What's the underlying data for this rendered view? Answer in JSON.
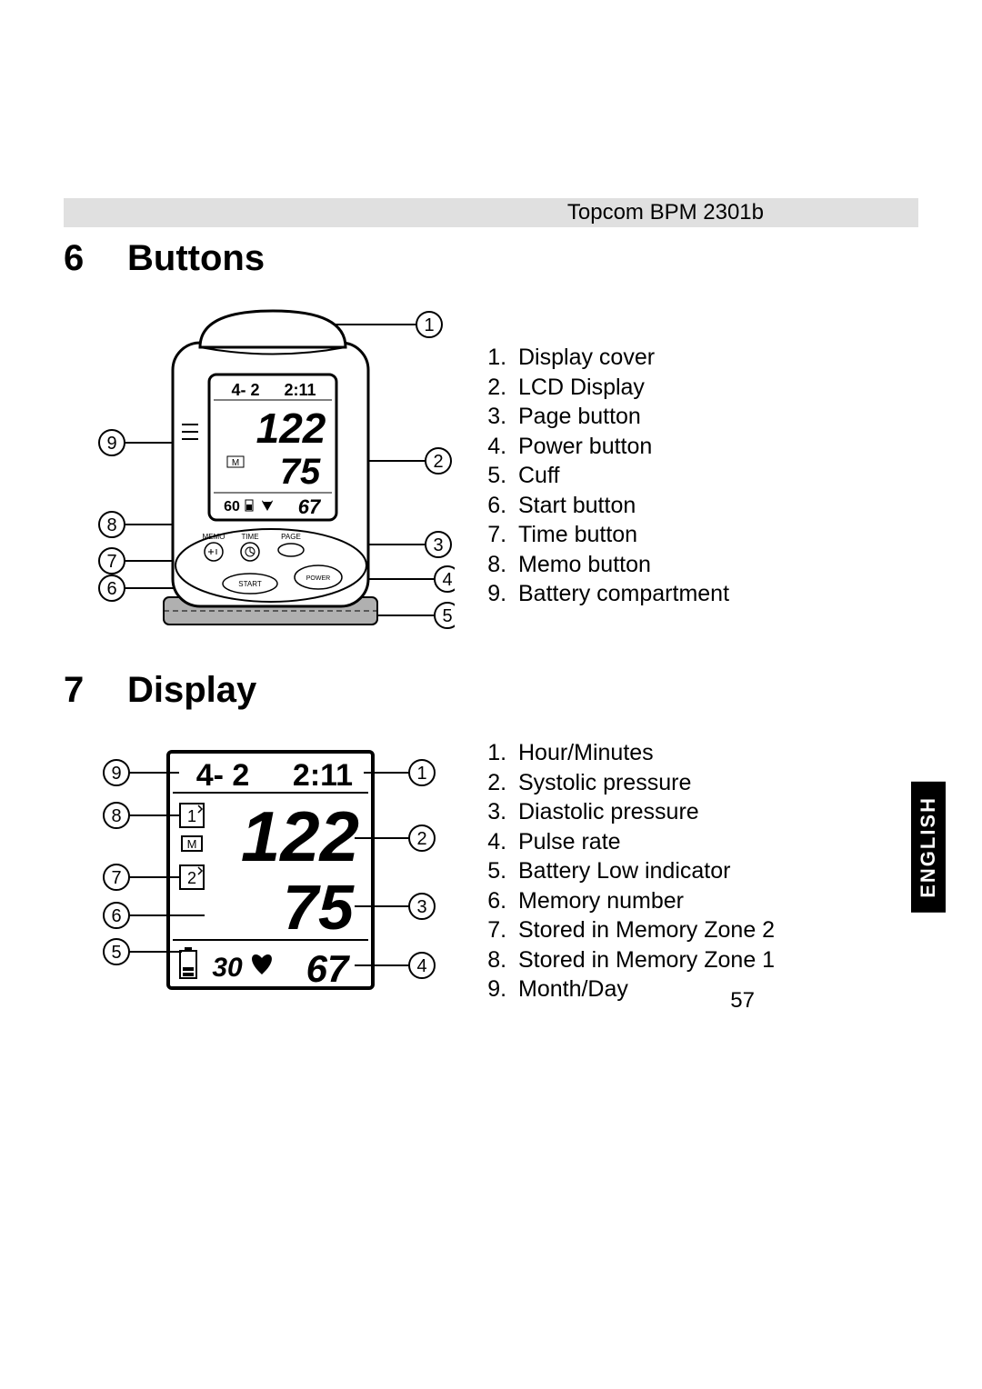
{
  "header": {
    "product": "Topcom  BPM 2301b"
  },
  "sections": {
    "buttons": {
      "num": "6",
      "title": "Buttons"
    },
    "display": {
      "num": "7",
      "title": "Display"
    }
  },
  "buttons_list": [
    "Display cover",
    "LCD Display",
    "Page button",
    "Power button",
    "Cuff",
    "Start button",
    "Time button",
    "Memo button",
    "Battery compartment"
  ],
  "display_list": [
    "Hour/Minutes",
    "Systolic pressure",
    "Diastolic pressure",
    "Pulse rate",
    "Battery Low indicator",
    "Memory number",
    "Stored in Memory Zone 2",
    "Stored in Memory Zone 1",
    "Month/Day"
  ],
  "page_number": "57",
  "language_tab": "ENGLISH",
  "device_diagram": {
    "lcd_date": "4- 2",
    "lcd_time": "2:11",
    "lcd_sys": "122",
    "lcd_dia": "75",
    "lcd_pulse_num": "60",
    "lcd_pulse2": "67",
    "lcd_m": "M",
    "btn_memo": "MEMO",
    "btn_time": "TIME",
    "btn_page": "PAGE",
    "btn_start": "START",
    "btn_power": "POWER",
    "callouts": [
      "1",
      "2",
      "3",
      "4",
      "5",
      "6",
      "7",
      "8",
      "9"
    ]
  },
  "display_diagram": {
    "date": "4- 2",
    "time": "2:11",
    "zone1": "1",
    "zone2": "2",
    "m": "M",
    "sys": "122",
    "dia": "75",
    "mem_num": "30",
    "pulse": "67",
    "callouts": [
      "1",
      "2",
      "3",
      "4",
      "5",
      "6",
      "7",
      "8",
      "9"
    ]
  }
}
